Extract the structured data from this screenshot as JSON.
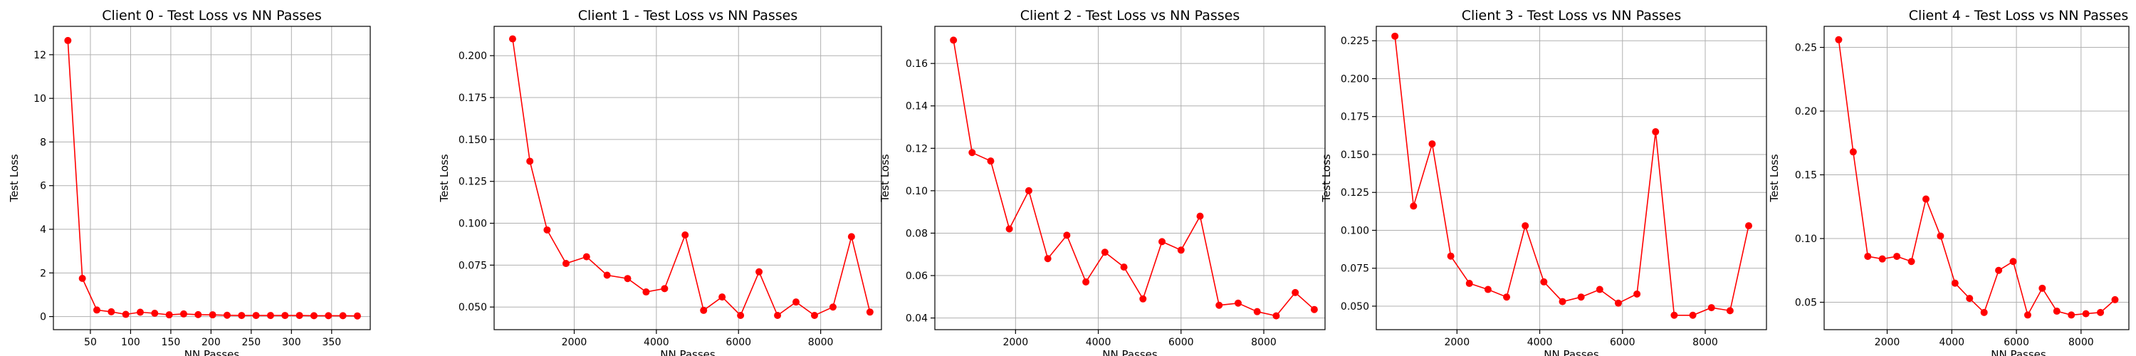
{
  "chart_data": [
    {
      "type": "line",
      "title": "Client 0 - Test Loss vs NN Passes",
      "xlabel": "NN Passes",
      "ylabel": "Test Loss",
      "xlim": [
        4,
        398
      ],
      "ylim": [
        -0.6,
        13.3
      ],
      "xticks": [
        50,
        100,
        150,
        200,
        250,
        300,
        350
      ],
      "yticks": [
        0,
        2,
        4,
        6,
        8,
        10,
        12
      ],
      "grid": true,
      "color": "#ff0000",
      "series": [
        {
          "x": [
            22,
            40,
            58,
            76,
            94,
            112,
            130,
            148,
            166,
            184,
            202,
            220,
            238,
            256,
            274,
            292,
            310,
            328,
            346,
            364,
            382
          ],
          "y": [
            12.65,
            1.75,
            0.3,
            0.22,
            0.1,
            0.2,
            0.15,
            0.08,
            0.12,
            0.09,
            0.08,
            0.06,
            0.05,
            0.05,
            0.05,
            0.05,
            0.05,
            0.04,
            0.04,
            0.04,
            0.03
          ]
        }
      ]
    },
    {
      "type": "line",
      "title": "Client 1 - Test Loss vs NN Passes",
      "xlabel": "NN Passes",
      "ylabel": "Test Loss",
      "xlim": [
        50,
        9480
      ],
      "ylim": [
        0.0365,
        0.2175
      ],
      "xticks": [
        2000,
        4000,
        6000,
        8000
      ],
      "yticks": [
        0.05,
        0.075,
        0.1,
        0.125,
        0.15,
        0.175,
        0.2
      ],
      "ytick_labels": [
        "0.050",
        "0.075",
        "0.100",
        "0.125",
        "0.150",
        "0.175",
        "0.200"
      ],
      "grid": true,
      "color": "#ff0000",
      "series": [
        {
          "x": [
            500,
            920,
            1340,
            1800,
            2300,
            2800,
            3300,
            3750,
            4200,
            4700,
            5150,
            5600,
            6050,
            6500,
            6950,
            7400,
            7850,
            8300,
            8750,
            9200
          ],
          "y": [
            0.21,
            0.137,
            0.096,
            0.076,
            0.08,
            0.069,
            0.067,
            0.059,
            0.061,
            0.093,
            0.048,
            0.056,
            0.045,
            0.071,
            0.045,
            0.053,
            0.045,
            0.05,
            0.092,
            0.047
          ]
        }
      ]
    },
    {
      "type": "line",
      "title": "Client 2 - Test Loss vs NN Passes",
      "xlabel": "NN Passes",
      "ylabel": "Test Loss",
      "xlim": [
        50,
        9480
      ],
      "ylim": [
        0.0345,
        0.1775
      ],
      "xticks": [
        2000,
        4000,
        6000,
        8000
      ],
      "yticks": [
        0.04,
        0.06,
        0.08,
        0.1,
        0.12,
        0.14,
        0.16
      ],
      "ytick_labels": [
        "0.04",
        "0.06",
        "0.08",
        "0.10",
        "0.12",
        "0.14",
        "0.16"
      ],
      "grid": true,
      "color": "#ff0000",
      "series": [
        {
          "x": [
            500,
            950,
            1400,
            1850,
            2320,
            2780,
            3240,
            3700,
            4160,
            4620,
            5080,
            5540,
            6000,
            6460,
            6920,
            7380,
            7840,
            8300,
            8760,
            9220
          ],
          "y": [
            0.171,
            0.118,
            0.114,
            0.082,
            0.1,
            0.068,
            0.079,
            0.057,
            0.071,
            0.064,
            0.049,
            0.076,
            0.072,
            0.088,
            0.046,
            0.047,
            0.043,
            0.041,
            0.052,
            0.044
          ]
        }
      ]
    },
    {
      "type": "line",
      "title": "Client 3 - Test Loss vs NN Passes",
      "xlabel": "NN Passes",
      "ylabel": "Test Loss",
      "xlim": [
        50,
        9480
      ],
      "ylim": [
        0.0345,
        0.2345
      ],
      "xticks": [
        2000,
        4000,
        6000,
        8000
      ],
      "yticks": [
        0.05,
        0.075,
        0.1,
        0.125,
        0.15,
        0.175,
        0.2,
        0.225
      ],
      "ytick_labels": [
        "0.050",
        "0.075",
        "0.100",
        "0.125",
        "0.150",
        "0.175",
        "0.200",
        "0.225"
      ],
      "grid": true,
      "color": "#ff0000",
      "series": [
        {
          "x": [
            500,
            950,
            1400,
            1850,
            2300,
            2750,
            3200,
            3650,
            4100,
            4550,
            5000,
            5450,
            5900,
            6350,
            6800,
            7250,
            7700,
            8150,
            8600,
            9050
          ],
          "y": [
            0.228,
            0.116,
            0.157,
            0.083,
            0.065,
            0.061,
            0.056,
            0.103,
            0.066,
            0.053,
            0.056,
            0.061,
            0.052,
            0.058,
            0.165,
            0.044,
            0.044,
            0.049,
            0.047,
            0.103
          ]
        }
      ]
    },
    {
      "type": "line",
      "title": "Client 4 - Test Loss vs NN Passes",
      "xlabel": "NN Passes",
      "ylabel": "Test Loss",
      "xlim": [
        50,
        9480
      ],
      "ylim": [
        0.0285,
        0.2665
      ],
      "xticks": [
        2000,
        4000,
        6000,
        8000
      ],
      "yticks": [
        0.05,
        0.1,
        0.15,
        0.2,
        0.25
      ],
      "ytick_labels": [
        "0.05",
        "0.10",
        "0.15",
        "0.20",
        "0.25"
      ],
      "grid": true,
      "color": "#ff0000",
      "series": [
        {
          "x": [
            500,
            950,
            1400,
            1850,
            2300,
            2750,
            3200,
            3650,
            4100,
            4550,
            5000,
            5450,
            5900,
            6350,
            6800,
            7250,
            7700,
            8150,
            8600,
            9050
          ],
          "y": [
            0.256,
            0.168,
            0.086,
            0.084,
            0.086,
            0.082,
            0.131,
            0.102,
            0.065,
            0.053,
            0.042,
            0.075,
            0.082,
            0.04,
            0.061,
            0.043,
            0.04,
            0.041,
            0.042,
            0.052
          ]
        }
      ]
    }
  ]
}
